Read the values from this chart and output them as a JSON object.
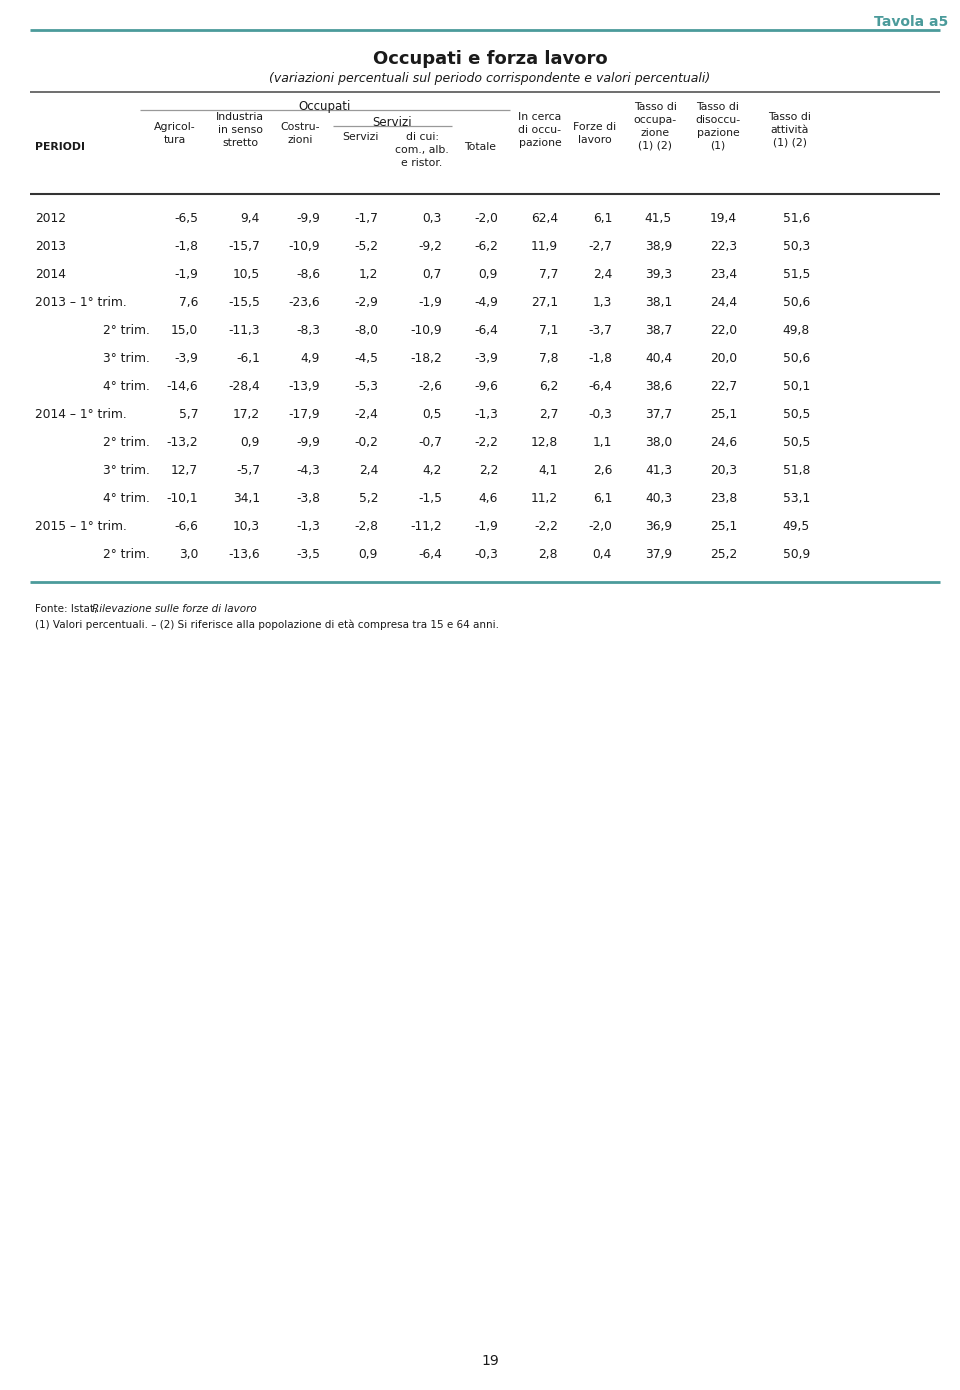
{
  "title_main": "Occupati e forza lavoro",
  "title_sub": "(variazioni percentuali sul periodo corrispondente e valori percentuali)",
  "tavola": "Tavola a5",
  "page_number": "19",
  "header_occupati": "Occupati",
  "header_servizi": "Servizi",
  "rows": [
    [
      "2012",
      "-6,5",
      "9,4",
      "-9,9",
      "-1,7",
      "0,3",
      "-2,0",
      "62,4",
      "6,1",
      "41,5",
      "19,4",
      "51,6"
    ],
    [
      "2013",
      "-1,8",
      "-15,7",
      "-10,9",
      "-5,2",
      "-9,2",
      "-6,2",
      "11,9",
      "-2,7",
      "38,9",
      "22,3",
      "50,3"
    ],
    [
      "2014",
      "-1,9",
      "10,5",
      "-8,6",
      "1,2",
      "0,7",
      "0,9",
      "7,7",
      "2,4",
      "39,3",
      "23,4",
      "51,5"
    ],
    [
      "2013 – 1° trim.",
      "7,6",
      "-15,5",
      "-23,6",
      "-2,9",
      "-1,9",
      "-4,9",
      "27,1",
      "1,3",
      "38,1",
      "24,4",
      "50,6"
    ],
    [
      "2° trim.",
      "15,0",
      "-11,3",
      "-8,3",
      "-8,0",
      "-10,9",
      "-6,4",
      "7,1",
      "-3,7",
      "38,7",
      "22,0",
      "49,8"
    ],
    [
      "3° trim.",
      "-3,9",
      "-6,1",
      "4,9",
      "-4,5",
      "-18,2",
      "-3,9",
      "7,8",
      "-1,8",
      "40,4",
      "20,0",
      "50,6"
    ],
    [
      "4° trim.",
      "-14,6",
      "-28,4",
      "-13,9",
      "-5,3",
      "-2,6",
      "-9,6",
      "6,2",
      "-6,4",
      "38,6",
      "22,7",
      "50,1"
    ],
    [
      "2014 – 1° trim.",
      "5,7",
      "17,2",
      "-17,9",
      "-2,4",
      "0,5",
      "-1,3",
      "2,7",
      "-0,3",
      "37,7",
      "25,1",
      "50,5"
    ],
    [
      "2° trim.",
      "-13,2",
      "0,9",
      "-9,9",
      "-0,2",
      "-0,7",
      "-2,2",
      "12,8",
      "1,1",
      "38,0",
      "24,6",
      "50,5"
    ],
    [
      "3° trim.",
      "12,7",
      "-5,7",
      "-4,3",
      "2,4",
      "4,2",
      "2,2",
      "4,1",
      "2,6",
      "41,3",
      "20,3",
      "51,8"
    ],
    [
      "4° trim.",
      "-10,1",
      "34,1",
      "-3,8",
      "5,2",
      "-1,5",
      "4,6",
      "11,2",
      "6,1",
      "40,3",
      "23,8",
      "53,1"
    ],
    [
      "2015 – 1° trim.",
      "-6,6",
      "10,3",
      "-1,3",
      "-2,8",
      "-11,2",
      "-1,9",
      "-2,2",
      "-2,0",
      "36,9",
      "25,1",
      "49,5"
    ],
    [
      "2° trim.",
      "3,0",
      "-13,6",
      "-3,5",
      "0,9",
      "-6,4",
      "-0,3",
      "2,8",
      "0,4",
      "37,9",
      "25,2",
      "50,9"
    ]
  ],
  "fonte_text": "Fonte: Istat, ",
  "fonte_italic": "Rilevazione sulle forze di lavoro",
  "fonte_end": ".",
  "note": "(1) Valori percentuali. – (2) Si riferisce alla popolazione di età compresa tra 15 e 64 anni.",
  "teal_color": "#4B9B9B",
  "gray_line": "#999999"
}
